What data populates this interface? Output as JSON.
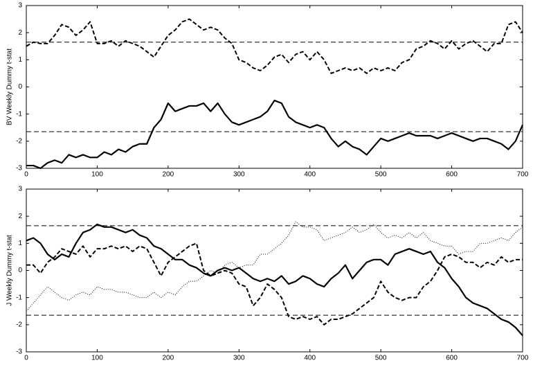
{
  "chart_data": [
    {
      "type": "line",
      "ylabel": "BV Weekly Dummy t-stat",
      "x": [
        0,
        10,
        20,
        30,
        40,
        50,
        60,
        70,
        80,
        90,
        100,
        110,
        120,
        130,
        140,
        150,
        160,
        170,
        180,
        190,
        200,
        210,
        220,
        230,
        240,
        250,
        260,
        270,
        280,
        290,
        300,
        310,
        320,
        330,
        340,
        350,
        360,
        370,
        380,
        390,
        400,
        410,
        420,
        430,
        440,
        450,
        460,
        470,
        480,
        490,
        500,
        510,
        520,
        530,
        540,
        550,
        560,
        570,
        580,
        590,
        600,
        610,
        620,
        630,
        640,
        650,
        660,
        670,
        680,
        690,
        700
      ],
      "series": [
        {
          "color": "#000000",
          "style": "dashed",
          "values": [
            1.5,
            1.65,
            1.6,
            1.6,
            1.9,
            2.3,
            2.2,
            1.9,
            2.1,
            2.4,
            1.6,
            1.6,
            1.7,
            1.5,
            1.7,
            1.6,
            1.5,
            1.3,
            1.1,
            1.5,
            1.9,
            2.1,
            2.4,
            2.5,
            2.3,
            2.1,
            2.2,
            2.1,
            1.8,
            1.6,
            1.0,
            0.9,
            0.7,
            0.6,
            0.8,
            1.1,
            1.2,
            0.9,
            1.2,
            1.3,
            1.0,
            1.3,
            1.0,
            0.5,
            0.6,
            0.7,
            0.6,
            0.7,
            0.5,
            0.7,
            0.6,
            0.7,
            0.6,
            0.9,
            1.0,
            1.4,
            1.5,
            1.7,
            1.6,
            1.4,
            1.7,
            1.4,
            1.6,
            1.7,
            1.5,
            1.3,
            1.6,
            1.6,
            2.3,
            2.4,
            2.0
          ]
        },
        {
          "color": "#000000",
          "style": "solid",
          "values": [
            -2.9,
            -2.9,
            -3.0,
            -2.8,
            -2.7,
            -2.8,
            -2.5,
            -2.6,
            -2.5,
            -2.6,
            -2.6,
            -2.4,
            -2.5,
            -2.3,
            -2.4,
            -2.2,
            -2.1,
            -2.1,
            -1.5,
            -1.2,
            -0.6,
            -0.9,
            -0.8,
            -0.7,
            -0.7,
            -0.6,
            -0.9,
            -0.6,
            -1.0,
            -1.3,
            -1.4,
            -1.3,
            -1.2,
            -1.1,
            -0.9,
            -0.5,
            -0.6,
            -1.1,
            -1.3,
            -1.4,
            -1.5,
            -1.4,
            -1.5,
            -1.9,
            -2.2,
            -2.0,
            -2.2,
            -2.3,
            -2.5,
            -2.2,
            -1.9,
            -2.0,
            -1.9,
            -1.8,
            -1.7,
            -1.8,
            -1.8,
            -1.8,
            -1.9,
            -1.8,
            -1.7,
            -1.8,
            -1.9,
            -2.0,
            -1.9,
            -1.9,
            -2.0,
            -2.1,
            -2.3,
            -2.0,
            -1.4
          ]
        }
      ],
      "reference_lines": [
        1.65,
        -1.65
      ],
      "xlim": [
        0,
        700
      ],
      "ylim": [
        -3,
        3
      ],
      "xticks": [
        0,
        100,
        200,
        300,
        400,
        500,
        600,
        700
      ],
      "yticks": [
        -3,
        -2,
        -1,
        0,
        1,
        2,
        3
      ]
    },
    {
      "type": "line",
      "ylabel": "J Weekly Dummy t-stat",
      "x": [
        0,
        10,
        20,
        30,
        40,
        50,
        60,
        70,
        80,
        90,
        100,
        110,
        120,
        130,
        140,
        150,
        160,
        170,
        180,
        190,
        200,
        210,
        220,
        230,
        240,
        250,
        260,
        270,
        280,
        290,
        300,
        310,
        320,
        330,
        340,
        350,
        360,
        370,
        380,
        390,
        400,
        410,
        420,
        430,
        440,
        450,
        460,
        470,
        480,
        490,
        500,
        510,
        520,
        530,
        540,
        550,
        560,
        570,
        580,
        590,
        600,
        610,
        620,
        630,
        640,
        650,
        660,
        670,
        680,
        690,
        700
      ],
      "series": [
        {
          "color": "#000000",
          "style": "solid",
          "values": [
            1.1,
            1.2,
            1.0,
            0.6,
            0.4,
            0.6,
            0.5,
            1.0,
            1.4,
            1.5,
            1.7,
            1.6,
            1.6,
            1.5,
            1.4,
            1.5,
            1.3,
            1.2,
            0.9,
            0.8,
            0.6,
            0.4,
            0.4,
            0.2,
            0.1,
            -0.1,
            -0.2,
            0.0,
            0.1,
            0.0,
            0.1,
            -0.1,
            -0.3,
            -0.4,
            -0.3,
            -0.4,
            -0.2,
            -0.5,
            -0.4,
            -0.2,
            -0.3,
            -0.5,
            -0.6,
            -0.3,
            -0.1,
            0.2,
            -0.3,
            0.0,
            0.3,
            0.4,
            0.4,
            0.2,
            0.6,
            0.7,
            0.8,
            0.7,
            0.6,
            0.7,
            0.3,
            0.1,
            -0.3,
            -0.6,
            -1.0,
            -1.2,
            -1.3,
            -1.4,
            -1.6,
            -1.8,
            -1.9,
            -2.1,
            -2.4
          ]
        },
        {
          "color": "#000000",
          "style": "dashed",
          "values": [
            0.2,
            0.2,
            -0.1,
            0.3,
            0.5,
            0.8,
            0.7,
            0.6,
            0.9,
            0.5,
            0.8,
            0.8,
            0.9,
            0.8,
            0.9,
            0.7,
            0.9,
            0.8,
            0.3,
            -0.2,
            0.3,
            0.5,
            0.7,
            0.9,
            1.0,
            0.0,
            -0.2,
            -0.1,
            0.0,
            -0.1,
            -0.5,
            -0.6,
            -1.3,
            -1.0,
            -0.5,
            -0.7,
            -1.0,
            -1.7,
            -1.8,
            -1.7,
            -1.8,
            -1.7,
            -2.0,
            -1.8,
            -1.8,
            -1.7,
            -1.6,
            -1.4,
            -1.2,
            -1.0,
            -0.4,
            -0.8,
            -1.0,
            -1.1,
            -1.0,
            -1.0,
            -0.6,
            -0.4,
            0.0,
            0.5,
            0.6,
            0.5,
            0.3,
            0.3,
            0.1,
            0.3,
            0.2,
            0.5,
            0.3,
            0.4,
            0.4
          ]
        },
        {
          "color": "#000000",
          "style": "dotted",
          "values": [
            -1.5,
            -1.2,
            -0.9,
            -0.6,
            -0.8,
            -1.0,
            -1.1,
            -0.9,
            -0.8,
            -0.9,
            -0.6,
            -0.7,
            -0.7,
            -0.8,
            -0.8,
            -0.9,
            -1.0,
            -1.0,
            -0.8,
            -1.0,
            -0.8,
            -0.9,
            -0.6,
            -0.4,
            -0.4,
            -0.2,
            0.0,
            -0.1,
            0.2,
            0.3,
            0.1,
            0.2,
            0.2,
            0.6,
            0.6,
            0.8,
            1.0,
            1.3,
            1.8,
            1.6,
            1.6,
            1.5,
            1.1,
            1.2,
            1.3,
            1.4,
            1.6,
            1.4,
            1.5,
            1.7,
            1.4,
            1.2,
            1.3,
            1.2,
            1.4,
            1.2,
            1.4,
            1.1,
            1.0,
            0.9,
            0.9,
            0.6,
            0.7,
            0.7,
            1.0,
            1.0,
            1.1,
            1.2,
            1.1,
            1.4,
            1.6
          ]
        }
      ],
      "reference_lines": [
        1.65,
        -1.65
      ],
      "xlim": [
        0,
        700
      ],
      "ylim": [
        -3,
        3
      ],
      "xticks": [
        0,
        100,
        200,
        300,
        400,
        500,
        600,
        700
      ],
      "yticks": [
        -3,
        -2,
        -1,
        0,
        1,
        2,
        3
      ]
    }
  ]
}
